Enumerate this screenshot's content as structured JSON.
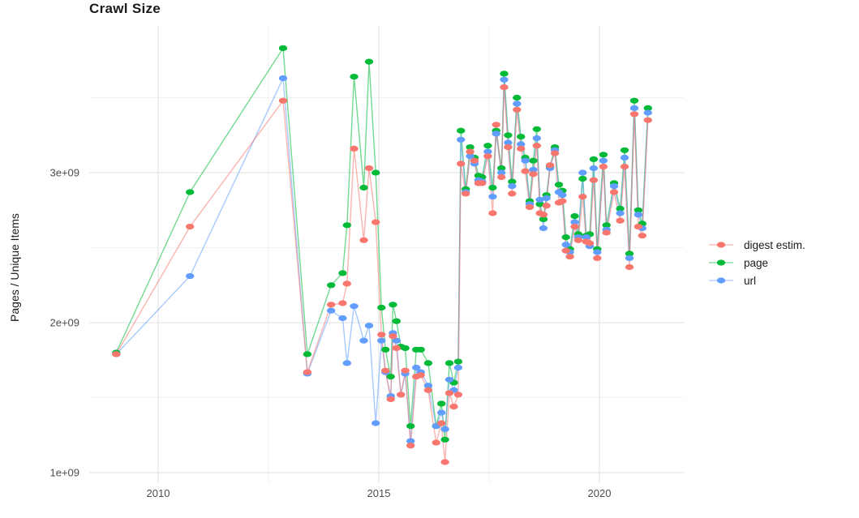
{
  "chart_data": {
    "type": "line",
    "title": "Crawl Size",
    "ylabel": "Pages / Unique Items",
    "xlabel": "",
    "values_unit": "billions (1e+09) of items",
    "legend_position": "right",
    "grid": true,
    "background": "#FFFFFF",
    "gridline_color": "#E6E6E6",
    "x_years": [
      2009.05,
      2010.72,
      2012.83,
      2013.38,
      2013.92,
      2014.18,
      2014.28,
      2014.44,
      2014.66,
      2014.78,
      2014.93,
      2015.06,
      2015.15,
      2015.27,
      2015.32,
      2015.4,
      2015.5,
      2015.6,
      2015.72,
      2015.85,
      2015.95,
      2016.12,
      2016.3,
      2016.42,
      2016.5,
      2016.6,
      2016.7,
      2016.8,
      2016.86,
      2016.97,
      2017.07,
      2017.17,
      2017.26,
      2017.34,
      2017.47,
      2017.58,
      2017.66,
      2017.78,
      2017.84,
      2017.93,
      2018.02,
      2018.13,
      2018.22,
      2018.32,
      2018.42,
      2018.5,
      2018.58,
      2018.65,
      2018.73,
      2018.8,
      2018.88,
      2018.99,
      2019.08,
      2019.16,
      2019.24,
      2019.33,
      2019.44,
      2019.52,
      2019.62,
      2019.7,
      2019.78,
      2019.87,
      2019.95,
      2020.09,
      2020.16,
      2020.33,
      2020.47,
      2020.57,
      2020.68,
      2020.79,
      2020.88,
      2020.97,
      2021.1
    ],
    "series": [
      {
        "name": "digest estim.",
        "color": "#F8766D",
        "values": [
          1.79,
          2.64,
          3.48,
          1.67,
          2.12,
          2.13,
          2.26,
          3.16,
          2.55,
          3.03,
          2.67,
          1.92,
          1.68,
          1.49,
          1.91,
          1.83,
          1.52,
          1.68,
          1.18,
          1.64,
          1.65,
          1.55,
          1.2,
          1.33,
          1.07,
          1.53,
          1.44,
          1.52,
          3.06,
          2.86,
          3.14,
          3.08,
          2.93,
          2.93,
          3.11,
          2.73,
          3.32,
          2.97,
          3.57,
          3.17,
          2.86,
          3.42,
          3.16,
          3.01,
          2.77,
          2.99,
          3.18,
          2.73,
          2.72,
          2.78,
          3.05,
          3.13,
          2.8,
          2.81,
          2.48,
          2.44,
          2.64,
          2.55,
          2.84,
          2.54,
          2.53,
          2.95,
          2.43,
          3.04,
          2.6,
          2.87,
          2.68,
          3.04,
          2.37,
          3.39,
          2.64,
          2.58,
          3.35
        ]
      },
      {
        "name": "page",
        "color": "#00BA38",
        "values": [
          1.8,
          2.87,
          3.83,
          1.79,
          2.25,
          2.33,
          2.65,
          3.64,
          2.9,
          3.74,
          3.0,
          2.1,
          1.82,
          1.64,
          2.12,
          2.01,
          1.84,
          1.83,
          1.31,
          1.82,
          1.82,
          1.73,
          1.31,
          1.46,
          1.22,
          1.73,
          1.6,
          1.74,
          3.28,
          2.89,
          3.17,
          3.1,
          2.98,
          2.97,
          3.18,
          2.9,
          3.28,
          3.03,
          3.66,
          3.25,
          2.94,
          3.5,
          3.24,
          3.1,
          2.81,
          3.08,
          3.29,
          2.79,
          2.69,
          2.85,
          3.04,
          3.17,
          2.92,
          2.88,
          2.57,
          2.49,
          2.71,
          2.59,
          2.96,
          2.58,
          2.59,
          3.09,
          2.49,
          3.12,
          2.65,
          2.93,
          2.76,
          3.15,
          2.46,
          3.48,
          2.75,
          2.66,
          3.43
        ]
      },
      {
        "name": "url",
        "color": "#619CFF",
        "values": [
          1.79,
          2.31,
          3.63,
          1.66,
          2.08,
          2.03,
          1.73,
          2.11,
          1.88,
          1.98,
          1.33,
          1.88,
          1.67,
          1.51,
          1.93,
          1.88,
          1.52,
          1.66,
          1.21,
          1.7,
          1.67,
          1.58,
          1.31,
          1.4,
          1.29,
          1.62,
          1.55,
          1.7,
          3.22,
          2.87,
          3.11,
          3.06,
          2.95,
          2.94,
          3.14,
          2.84,
          3.26,
          3.0,
          3.62,
          3.2,
          2.91,
          3.46,
          3.19,
          3.08,
          2.79,
          3.02,
          3.23,
          2.82,
          2.63,
          2.83,
          3.03,
          3.15,
          2.87,
          2.85,
          2.52,
          2.47,
          2.67,
          2.57,
          3.0,
          2.57,
          2.51,
          3.03,
          2.47,
          3.08,
          2.62,
          2.91,
          2.73,
          3.1,
          2.43,
          3.43,
          2.72,
          2.63,
          3.4
        ]
      }
    ],
    "x_ticks": [
      {
        "label": "2010",
        "value": 2010
      },
      {
        "label": "2015",
        "value": 2015
      },
      {
        "label": "2020",
        "value": 2020
      }
    ],
    "x_minor": [
      2012.5,
      2017.5
    ],
    "y_ticks": [
      {
        "label": "1e+09",
        "value": 1
      },
      {
        "label": "2e+09",
        "value": 2
      },
      {
        "label": "3e+09",
        "value": 3
      }
    ],
    "y_minor": [
      1.5,
      2.5,
      3.5
    ],
    "xlim": [
      2008.44,
      2021.91
    ],
    "ylim": [
      0.93,
      3.98
    ]
  }
}
